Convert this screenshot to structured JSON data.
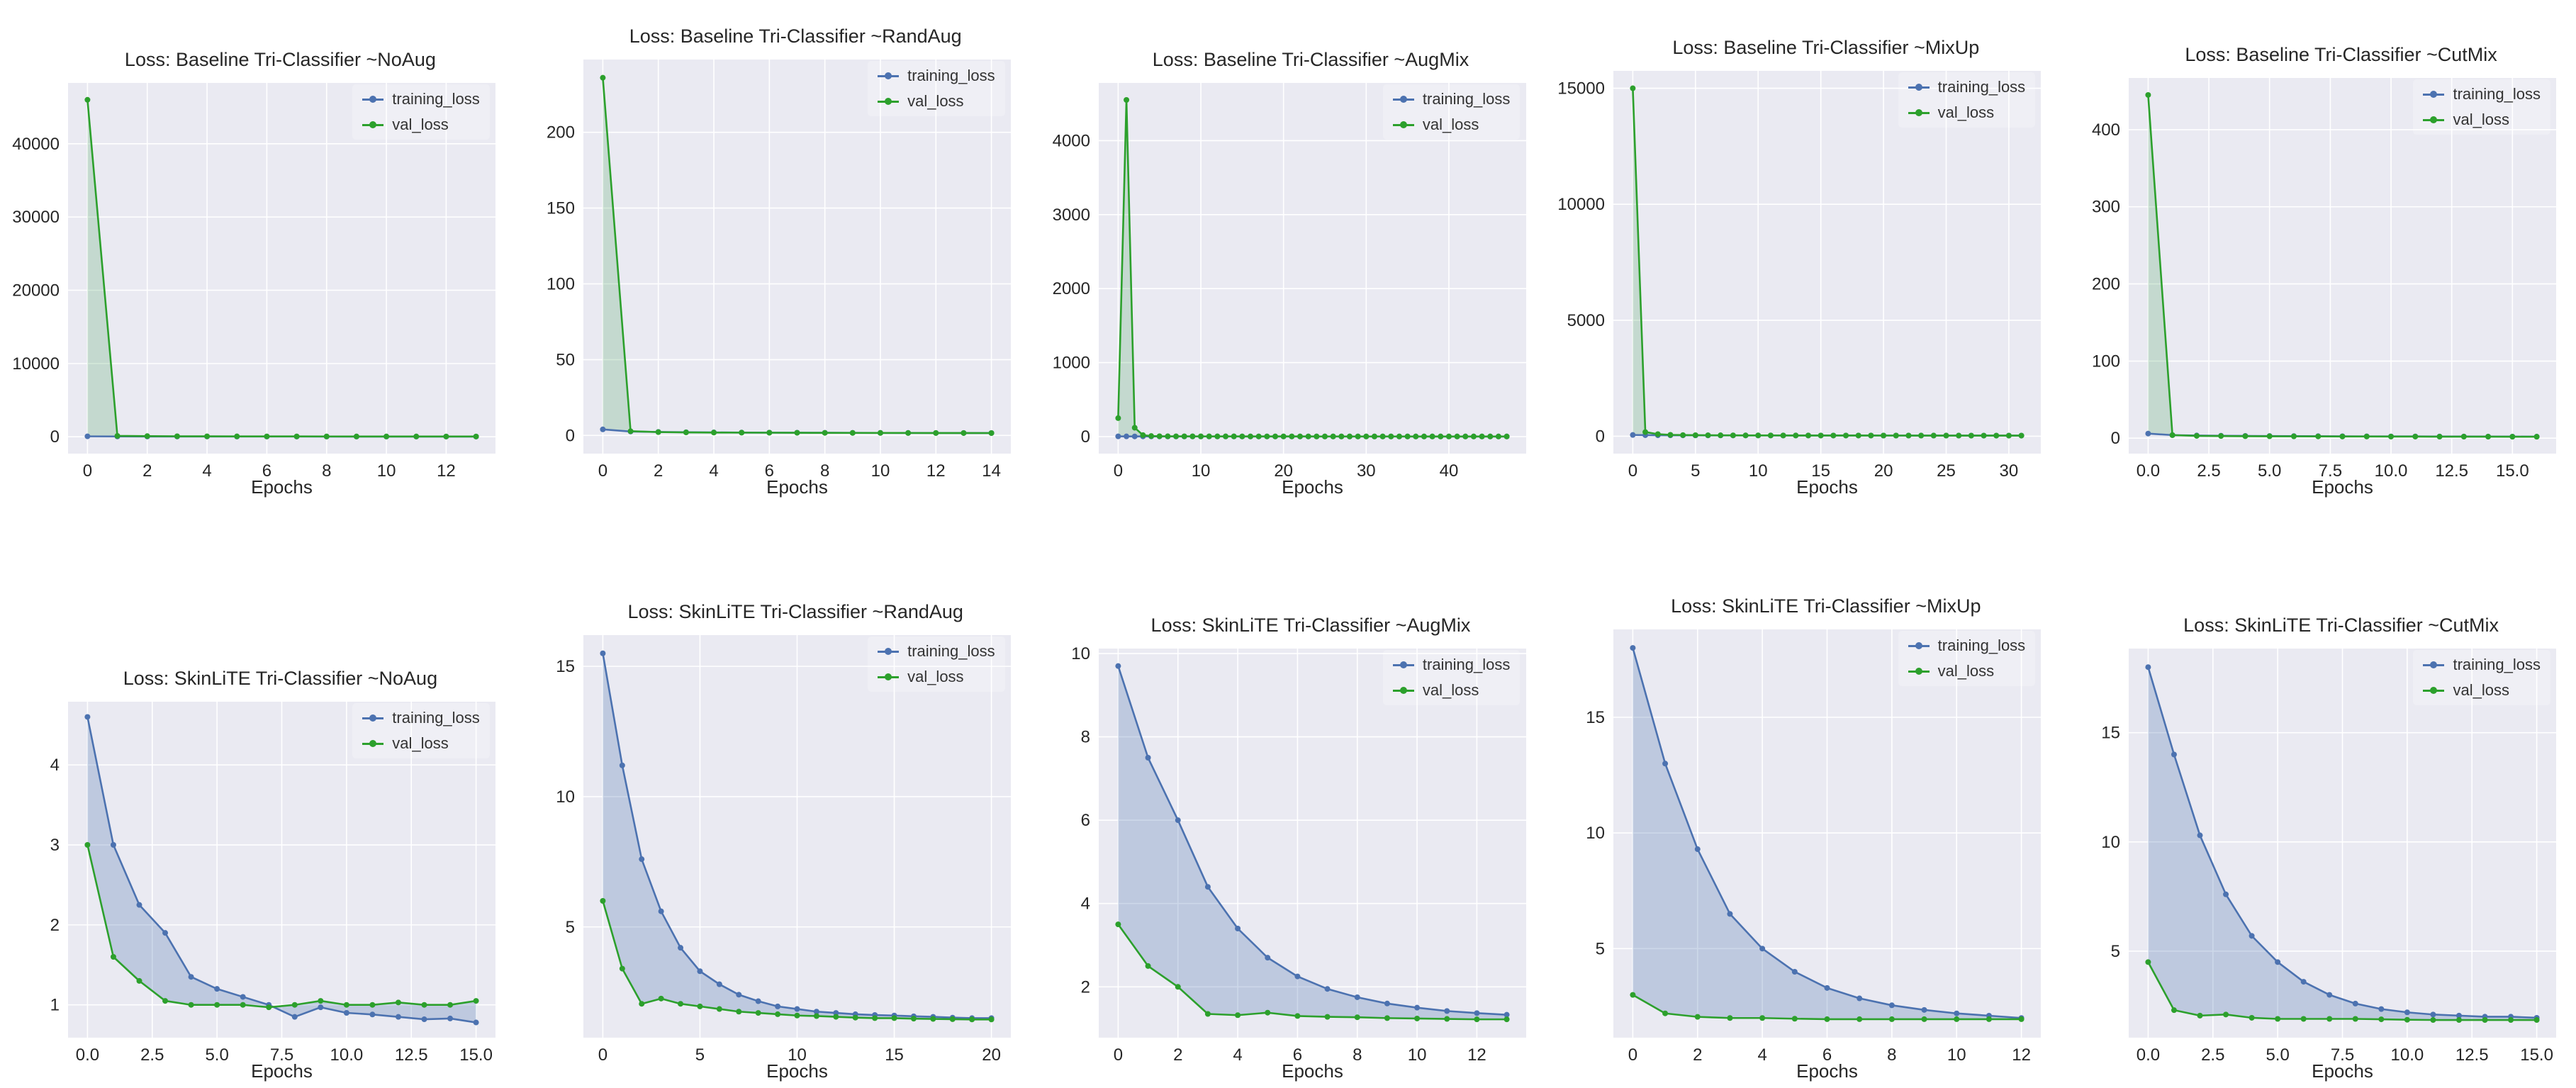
{
  "colors": {
    "plot_bg": "#eaeaf2",
    "grid": "#ffffff",
    "text": "#262626"
  },
  "chart_data": [
    {
      "type": "line",
      "title": "Loss: Baseline Tri-Classifier ~NoAug",
      "xlabel": "Epochs",
      "grid": true,
      "legend_position": "upper right",
      "fill_color": "rgba(85,168,104,0.25)",
      "xlim": [
        -0.65,
        13.65
      ],
      "ylim": [
        -2300,
        48300
      ],
      "xticks": {
        "values": [
          0,
          2,
          4,
          6,
          8,
          10,
          12
        ],
        "labels": [
          "0",
          "2",
          "4",
          "6",
          "8",
          "10",
          "12"
        ]
      },
      "yticks": {
        "values": [
          0,
          10000,
          20000,
          30000,
          40000
        ],
        "labels": [
          "0",
          "10000",
          "20000",
          "30000",
          "40000"
        ]
      },
      "series": [
        {
          "name": "training_loss",
          "color": "#4c72b0",
          "values": [
            60,
            45,
            40,
            38,
            36,
            35,
            34,
            33,
            32,
            31,
            30,
            30,
            29,
            29
          ]
        },
        {
          "name": "val_loss",
          "color": "#2ca02c",
          "values": [
            46000,
            120,
            90,
            70,
            60,
            55,
            50,
            48,
            45,
            43,
            42,
            41,
            40,
            40
          ]
        }
      ]
    },
    {
      "type": "line",
      "title": "Loss: Baseline Tri-Classifier ~RandAug",
      "xlabel": "Epochs",
      "grid": true,
      "legend_position": "upper right",
      "fill_color": "rgba(85,168,104,0.25)",
      "xlim": [
        -0.7,
        14.7
      ],
      "ylim": [
        -12,
        248
      ],
      "xticks": {
        "values": [
          0,
          2,
          4,
          6,
          8,
          10,
          12,
          14
        ],
        "labels": [
          "0",
          "2",
          "4",
          "6",
          "8",
          "10",
          "12",
          "14"
        ]
      },
      "yticks": {
        "values": [
          0,
          50,
          100,
          150,
          200
        ],
        "labels": [
          "0",
          "50",
          "100",
          "150",
          "200"
        ]
      },
      "series": [
        {
          "name": "training_loss",
          "color": "#4c72b0",
          "values": [
            4.0,
            2.6,
            2.3,
            2.1,
            2.0,
            1.9,
            1.85,
            1.8,
            1.75,
            1.7,
            1.68,
            1.65,
            1.62,
            1.6,
            1.58
          ]
        },
        {
          "name": "val_loss",
          "color": "#2ca02c",
          "values": [
            236,
            2.8,
            2.2,
            2.0,
            1.9,
            1.85,
            1.8,
            1.75,
            1.7,
            1.68,
            1.65,
            1.62,
            1.6,
            1.58,
            1.56
          ]
        }
      ]
    },
    {
      "type": "line",
      "title": "Loss: Baseline Tri-Classifier ~AugMix",
      "xlabel": "Epochs",
      "grid": true,
      "legend_position": "upper right",
      "fill_color": "rgba(85,168,104,0.25)",
      "xlim": [
        -2.35,
        49.35
      ],
      "ylim": [
        -230,
        4780
      ],
      "xticks": {
        "values": [
          0,
          10,
          20,
          30,
          40
        ],
        "labels": [
          "0",
          "10",
          "20",
          "30",
          "40"
        ]
      },
      "yticks": {
        "values": [
          0,
          1000,
          2000,
          3000,
          4000
        ],
        "labels": [
          "0",
          "1000",
          "2000",
          "3000",
          "4000"
        ]
      },
      "series": [
        {
          "name": "training_loss",
          "color": "#4c72b0",
          "values": [
            3.5,
            2.9,
            2.7,
            2.6,
            2.5,
            2.5,
            2.4,
            2.4,
            2.3,
            2.3,
            2.3,
            2.2,
            2.2,
            2.2,
            2.2,
            2.1,
            2.1,
            2.1,
            2.1,
            2.1,
            2,
            2,
            2,
            2,
            2,
            2,
            2,
            2,
            1.9,
            1.9,
            1.9,
            1.9,
            1.9,
            1.9,
            1.9,
            1.9,
            1.9,
            1.9,
            1.8,
            1.8,
            1.8,
            1.8,
            1.8,
            1.8,
            1.8,
            1.8,
            1.8,
            1.8
          ]
        },
        {
          "name": "val_loss",
          "color": "#2ca02c",
          "values": [
            250,
            4550,
            120,
            20,
            8,
            5,
            4.5,
            4,
            3.8,
            3.6,
            3.4,
            3.2,
            3.1,
            3,
            2.9,
            2.8,
            2.8,
            2.7,
            2.7,
            2.6,
            2.6,
            2.5,
            2.5,
            2.5,
            2.4,
            2.4,
            2.4,
            2.3,
            2.3,
            2.3,
            2.3,
            2.2,
            2.2,
            2.2,
            2.2,
            2.2,
            2.1,
            2.1,
            2.1,
            2.1,
            2.1,
            2.1,
            2,
            2,
            2,
            2,
            2,
            2
          ]
        }
      ]
    },
    {
      "type": "line",
      "title": "Loss: Baseline Tri-Classifier ~MixUp",
      "xlabel": "Epochs",
      "grid": true,
      "legend_position": "upper right",
      "fill_color": "rgba(85,168,104,0.25)",
      "xlim": [
        -1.55,
        32.55
      ],
      "ylim": [
        -750,
        15750
      ],
      "xticks": {
        "values": [
          0,
          5,
          10,
          15,
          20,
          25,
          30
        ],
        "labels": [
          "0",
          "5",
          "10",
          "15",
          "20",
          "25",
          "30"
        ]
      },
      "yticks": {
        "values": [
          0,
          5000,
          10000,
          15000
        ],
        "labels": [
          "0",
          "5000",
          "10000",
          "15000"
        ]
      },
      "series": [
        {
          "name": "training_loss",
          "color": "#4c72b0",
          "values": [
            55,
            45,
            42,
            40,
            38,
            37,
            36,
            35,
            34,
            34,
            33,
            33,
            32,
            32,
            31,
            31,
            30,
            30,
            30,
            29,
            29,
            29,
            28,
            28,
            28,
            28,
            27,
            27,
            27,
            27,
            26,
            26
          ]
        },
        {
          "name": "val_loss",
          "color": "#2ca02c",
          "values": [
            15000,
            180,
            90,
            60,
            50,
            45,
            42,
            40,
            38,
            36,
            35,
            34,
            33,
            32,
            32,
            31,
            31,
            30,
            30,
            30,
            29,
            29,
            29,
            28,
            28,
            28,
            28,
            27,
            27,
            27,
            27,
            27
          ]
        }
      ]
    },
    {
      "type": "line",
      "title": "Loss: Baseline Tri-Classifier ~CutMix",
      "xlabel": "Epochs",
      "grid": true,
      "legend_position": "upper right",
      "fill_color": "rgba(85,168,104,0.25)",
      "xlim": [
        -0.8,
        16.8
      ],
      "ylim": [
        -20,
        467
      ],
      "xticks": {
        "values": [
          0,
          2.5,
          5,
          7.5,
          10,
          12.5,
          15
        ],
        "labels": [
          "0.0",
          "2.5",
          "5.0",
          "7.5",
          "10.0",
          "12.5",
          "15.0"
        ]
      },
      "yticks": {
        "values": [
          0,
          100,
          200,
          300,
          400
        ],
        "labels": [
          "0",
          "100",
          "200",
          "300",
          "400"
        ]
      },
      "series": [
        {
          "name": "training_loss",
          "color": "#4c72b0",
          "values": [
            6,
            4,
            3.5,
            3.2,
            3,
            2.8,
            2.7,
            2.6,
            2.5,
            2.4,
            2.3,
            2.3,
            2.2,
            2.2,
            2.1,
            2.1,
            2
          ]
        },
        {
          "name": "val_loss",
          "color": "#2ca02c",
          "values": [
            445,
            4,
            3,
            2.8,
            2.6,
            2.5,
            2.4,
            2.3,
            2.2,
            2.2,
            2.1,
            2.1,
            2,
            2,
            2,
            1.9,
            1.9
          ]
        }
      ]
    },
    {
      "type": "line",
      "title": "Loss: SkinLiTE Tri-Classifier ~NoAug",
      "xlabel": "Epochs",
      "grid": true,
      "legend_position": "upper right",
      "fill_color": "rgba(76,114,176,0.28)",
      "xlim": [
        -0.75,
        15.75
      ],
      "ylim": [
        0.59,
        4.79
      ],
      "xticks": {
        "values": [
          0,
          2.5,
          5,
          7.5,
          10,
          12.5,
          15
        ],
        "labels": [
          "0.0",
          "2.5",
          "5.0",
          "7.5",
          "10.0",
          "12.5",
          "15.0"
        ]
      },
      "yticks": {
        "values": [
          1,
          2,
          3,
          4
        ],
        "labels": [
          "1",
          "2",
          "3",
          "4"
        ]
      },
      "series": [
        {
          "name": "training_loss",
          "color": "#4c72b0",
          "values": [
            4.6,
            3.0,
            2.25,
            1.9,
            1.35,
            1.2,
            1.1,
            1.0,
            0.85,
            0.97,
            0.9,
            0.88,
            0.85,
            0.82,
            0.83,
            0.78
          ]
        },
        {
          "name": "val_loss",
          "color": "#2ca02c",
          "values": [
            3.0,
            1.6,
            1.3,
            1.05,
            1.0,
            1.0,
            1.0,
            0.97,
            1.0,
            1.05,
            1.0,
            1.0,
            1.03,
            1.0,
            1.0,
            1.05
          ]
        }
      ]
    },
    {
      "type": "line",
      "title": "Loss: SkinLiTE Tri-Classifier ~RandAug",
      "xlabel": "Epochs",
      "grid": true,
      "legend_position": "upper right",
      "fill_color": "rgba(76,114,176,0.28)",
      "xlim": [
        -1.0,
        21.0
      ],
      "ylim": [
        0.75,
        16.2
      ],
      "xticks": {
        "values": [
          0,
          5,
          10,
          15,
          20
        ],
        "labels": [
          "0",
          "5",
          "10",
          "15",
          "20"
        ]
      },
      "yticks": {
        "values": [
          5,
          10,
          15
        ],
        "labels": [
          "5",
          "10",
          "15"
        ]
      },
      "series": [
        {
          "name": "training_loss",
          "color": "#4c72b0",
          "values": [
            15.5,
            11.2,
            7.6,
            5.6,
            4.2,
            3.3,
            2.8,
            2.4,
            2.15,
            1.95,
            1.85,
            1.75,
            1.7,
            1.65,
            1.62,
            1.6,
            1.57,
            1.55,
            1.52,
            1.5,
            1.5
          ]
        },
        {
          "name": "val_loss",
          "color": "#2ca02c",
          "values": [
            6.0,
            3.4,
            2.05,
            2.25,
            2.05,
            1.95,
            1.85,
            1.75,
            1.7,
            1.65,
            1.6,
            1.58,
            1.55,
            1.52,
            1.5,
            1.5,
            1.48,
            1.47,
            1.46,
            1.45,
            1.45
          ]
        }
      ]
    },
    {
      "type": "line",
      "title": "Loss: SkinLiTE Tri-Classifier ~AugMix",
      "xlabel": "Epochs",
      "grid": true,
      "legend_position": "upper right",
      "fill_color": "rgba(76,114,176,0.28)",
      "xlim": [
        -0.65,
        13.65
      ],
      "ylim": [
        0.78,
        10.12
      ],
      "xticks": {
        "values": [
          0,
          2,
          4,
          6,
          8,
          10,
          12
        ],
        "labels": [
          "0",
          "2",
          "4",
          "6",
          "8",
          "10",
          "12"
        ]
      },
      "yticks": {
        "values": [
          2,
          4,
          6,
          8,
          10
        ],
        "labels": [
          "2",
          "4",
          "6",
          "8",
          "10"
        ]
      },
      "series": [
        {
          "name": "training_loss",
          "color": "#4c72b0",
          "values": [
            9.7,
            7.5,
            6.0,
            4.4,
            3.4,
            2.7,
            2.25,
            1.95,
            1.75,
            1.6,
            1.5,
            1.42,
            1.37,
            1.33
          ]
        },
        {
          "name": "val_loss",
          "color": "#2ca02c",
          "values": [
            3.5,
            2.5,
            2.0,
            1.35,
            1.32,
            1.38,
            1.3,
            1.28,
            1.27,
            1.25,
            1.24,
            1.23,
            1.22,
            1.22
          ]
        }
      ]
    },
    {
      "type": "line",
      "title": "Loss: SkinLiTE Tri-Classifier ~MixUp",
      "xlabel": "Epochs",
      "grid": true,
      "legend_position": "upper right",
      "fill_color": "rgba(76,114,176,0.28)",
      "xlim": [
        -0.6,
        12.6
      ],
      "ylim": [
        1.15,
        18.8
      ],
      "xticks": {
        "values": [
          0,
          2,
          4,
          6,
          8,
          10,
          12
        ],
        "labels": [
          "0",
          "2",
          "4",
          "6",
          "8",
          "10",
          "12"
        ]
      },
      "yticks": {
        "values": [
          5,
          10,
          15
        ],
        "labels": [
          "5",
          "10",
          "15"
        ]
      },
      "series": [
        {
          "name": "training_loss",
          "color": "#4c72b0",
          "values": [
            18.0,
            13.0,
            9.3,
            6.5,
            5.0,
            4.0,
            3.3,
            2.85,
            2.55,
            2.35,
            2.2,
            2.1,
            2.0
          ]
        },
        {
          "name": "val_loss",
          "color": "#2ca02c",
          "values": [
            3.0,
            2.2,
            2.05,
            2.0,
            2.0,
            1.97,
            1.95,
            1.95,
            1.95,
            1.95,
            1.95,
            1.95,
            1.95
          ]
        }
      ]
    },
    {
      "type": "line",
      "title": "Loss: SkinLiTE Tri-Classifier ~CutMix",
      "xlabel": "Epochs",
      "grid": true,
      "legend_position": "upper right",
      "fill_color": "rgba(76,114,176,0.28)",
      "xlim": [
        -0.75,
        15.75
      ],
      "ylim": [
        1.04,
        18.85
      ],
      "xticks": {
        "values": [
          0,
          2.5,
          5,
          7.5,
          10,
          12.5,
          15
        ],
        "labels": [
          "0.0",
          "2.5",
          "5.0",
          "7.5",
          "10.0",
          "12.5",
          "15.0"
        ]
      },
      "yticks": {
        "values": [
          5,
          10,
          15
        ],
        "labels": [
          "5",
          "10",
          "15"
        ]
      },
      "series": [
        {
          "name": "training_loss",
          "color": "#4c72b0",
          "values": [
            18.0,
            14.0,
            10.3,
            7.6,
            5.7,
            4.5,
            3.6,
            3.0,
            2.6,
            2.35,
            2.2,
            2.1,
            2.05,
            2.0,
            2.0,
            1.95
          ]
        },
        {
          "name": "val_loss",
          "color": "#2ca02c",
          "values": [
            4.5,
            2.3,
            2.05,
            2.1,
            1.95,
            1.9,
            1.9,
            1.9,
            1.9,
            1.88,
            1.86,
            1.85,
            1.85,
            1.85,
            1.85,
            1.85
          ]
        }
      ]
    }
  ]
}
